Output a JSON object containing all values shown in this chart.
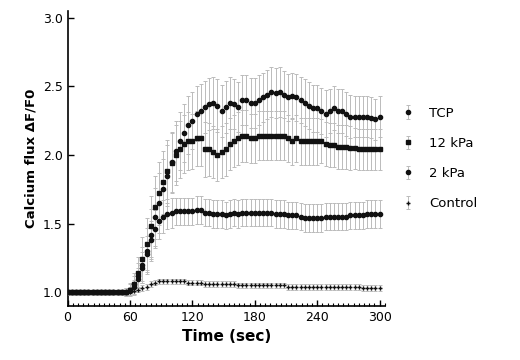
{
  "title": "",
  "xlabel": "Time (sec)",
  "ylabel": "Calcium flux ΔF/F0",
  "xlim": [
    0,
    305
  ],
  "ylim": [
    0.9,
    3.05
  ],
  "yticks": [
    1.0,
    1.5,
    2.0,
    2.5,
    3.0
  ],
  "xticks": [
    0,
    60,
    120,
    180,
    240,
    300
  ],
  "background_color": "#ffffff",
  "series": {
    "TCP": {
      "color": "#111111",
      "marker": "o",
      "markersize": 3.0,
      "linewidth": 1.0,
      "x": [
        0,
        4,
        8,
        12,
        16,
        20,
        24,
        28,
        32,
        36,
        40,
        44,
        48,
        52,
        56,
        60,
        64,
        68,
        72,
        76,
        80,
        84,
        88,
        92,
        96,
        100,
        104,
        108,
        112,
        116,
        120,
        124,
        128,
        132,
        136,
        140,
        144,
        148,
        152,
        156,
        160,
        164,
        168,
        172,
        176,
        180,
        184,
        188,
        192,
        196,
        200,
        204,
        208,
        212,
        216,
        220,
        224,
        228,
        232,
        236,
        240,
        244,
        248,
        252,
        256,
        260,
        264,
        268,
        272,
        276,
        280,
        284,
        288,
        292,
        296,
        300
      ],
      "y": [
        1.0,
        1.0,
        1.0,
        1.0,
        1.0,
        1.0,
        1.0,
        1.0,
        1.0,
        1.0,
        1.0,
        1.0,
        1.0,
        1.0,
        1.0,
        1.02,
        1.06,
        1.12,
        1.2,
        1.3,
        1.42,
        1.55,
        1.65,
        1.75,
        1.85,
        1.95,
        2.03,
        2.1,
        2.16,
        2.22,
        2.25,
        2.3,
        2.32,
        2.35,
        2.37,
        2.38,
        2.36,
        2.32,
        2.35,
        2.38,
        2.37,
        2.35,
        2.4,
        2.4,
        2.38,
        2.38,
        2.4,
        2.42,
        2.44,
        2.46,
        2.45,
        2.46,
        2.44,
        2.42,
        2.43,
        2.42,
        2.4,
        2.38,
        2.36,
        2.34,
        2.34,
        2.32,
        2.3,
        2.32,
        2.34,
        2.32,
        2.32,
        2.3,
        2.28,
        2.28,
        2.28,
        2.28,
        2.28,
        2.27,
        2.26,
        2.28
      ],
      "yerr": [
        0.02,
        0.02,
        0.02,
        0.02,
        0.02,
        0.02,
        0.02,
        0.02,
        0.02,
        0.02,
        0.02,
        0.02,
        0.02,
        0.02,
        0.03,
        0.04,
        0.06,
        0.09,
        0.13,
        0.17,
        0.19,
        0.21,
        0.22,
        0.22,
        0.22,
        0.22,
        0.22,
        0.21,
        0.21,
        0.21,
        0.21,
        0.2,
        0.2,
        0.19,
        0.19,
        0.19,
        0.19,
        0.19,
        0.19,
        0.19,
        0.18,
        0.18,
        0.18,
        0.18,
        0.18,
        0.18,
        0.18,
        0.18,
        0.18,
        0.18,
        0.18,
        0.18,
        0.17,
        0.17,
        0.17,
        0.17,
        0.17,
        0.17,
        0.17,
        0.17,
        0.17,
        0.17,
        0.17,
        0.16,
        0.16,
        0.16,
        0.16,
        0.16,
        0.16,
        0.15,
        0.15,
        0.15,
        0.15,
        0.15,
        0.15,
        0.15
      ],
      "label": "TCP"
    },
    "12kPa": {
      "color": "#111111",
      "marker": "s",
      "markersize": 3.5,
      "linewidth": 1.0,
      "x": [
        0,
        4,
        8,
        12,
        16,
        20,
        24,
        28,
        32,
        36,
        40,
        44,
        48,
        52,
        56,
        60,
        64,
        68,
        72,
        76,
        80,
        84,
        88,
        92,
        96,
        100,
        104,
        108,
        112,
        116,
        120,
        124,
        128,
        132,
        136,
        140,
        144,
        148,
        152,
        156,
        160,
        164,
        168,
        172,
        176,
        180,
        184,
        188,
        192,
        196,
        200,
        204,
        208,
        212,
        216,
        220,
        224,
        228,
        232,
        236,
        240,
        244,
        248,
        252,
        256,
        260,
        264,
        268,
        272,
        276,
        280,
        284,
        288,
        292,
        296,
        300
      ],
      "y": [
        1.0,
        1.0,
        1.0,
        1.0,
        1.0,
        1.0,
        1.0,
        1.0,
        1.0,
        1.0,
        1.0,
        1.0,
        1.0,
        1.0,
        1.0,
        1.02,
        1.06,
        1.14,
        1.24,
        1.35,
        1.48,
        1.62,
        1.72,
        1.8,
        1.88,
        1.94,
        2.0,
        2.04,
        2.08,
        2.1,
        2.1,
        2.12,
        2.12,
        2.04,
        2.04,
        2.02,
        2.0,
        2.02,
        2.04,
        2.08,
        2.1,
        2.12,
        2.14,
        2.14,
        2.12,
        2.12,
        2.14,
        2.14,
        2.14,
        2.14,
        2.14,
        2.14,
        2.14,
        2.12,
        2.1,
        2.12,
        2.1,
        2.1,
        2.1,
        2.1,
        2.1,
        2.1,
        2.08,
        2.07,
        2.07,
        2.06,
        2.06,
        2.06,
        2.05,
        2.05,
        2.04,
        2.04,
        2.04,
        2.04,
        2.04,
        2.04
      ],
      "yerr": [
        0.02,
        0.02,
        0.02,
        0.02,
        0.02,
        0.02,
        0.02,
        0.02,
        0.02,
        0.02,
        0.02,
        0.02,
        0.02,
        0.02,
        0.03,
        0.05,
        0.08,
        0.12,
        0.16,
        0.19,
        0.22,
        0.23,
        0.23,
        0.23,
        0.23,
        0.22,
        0.22,
        0.21,
        0.21,
        0.21,
        0.2,
        0.2,
        0.2,
        0.2,
        0.19,
        0.19,
        0.19,
        0.19,
        0.19,
        0.19,
        0.19,
        0.19,
        0.19,
        0.19,
        0.18,
        0.18,
        0.18,
        0.18,
        0.18,
        0.18,
        0.18,
        0.18,
        0.18,
        0.17,
        0.17,
        0.17,
        0.17,
        0.17,
        0.17,
        0.17,
        0.17,
        0.16,
        0.16,
        0.16,
        0.16,
        0.16,
        0.16,
        0.16,
        0.16,
        0.15,
        0.15,
        0.15,
        0.15,
        0.15,
        0.15,
        0.15
      ],
      "label": "12 kPa"
    },
    "2kPa": {
      "color": "#111111",
      "marker": "o",
      "markersize": 3.0,
      "linewidth": 1.0,
      "x": [
        0,
        4,
        8,
        12,
        16,
        20,
        24,
        28,
        32,
        36,
        40,
        44,
        48,
        52,
        56,
        60,
        64,
        68,
        72,
        76,
        80,
        84,
        88,
        92,
        96,
        100,
        104,
        108,
        112,
        116,
        120,
        124,
        128,
        132,
        136,
        140,
        144,
        148,
        152,
        156,
        160,
        164,
        168,
        172,
        176,
        180,
        184,
        188,
        192,
        196,
        200,
        204,
        208,
        212,
        216,
        220,
        224,
        228,
        232,
        236,
        240,
        244,
        248,
        252,
        256,
        260,
        264,
        268,
        272,
        276,
        280,
        284,
        288,
        292,
        296,
        300
      ],
      "y": [
        1.0,
        1.0,
        1.0,
        1.0,
        1.0,
        1.0,
        1.0,
        1.0,
        1.0,
        1.0,
        1.0,
        1.0,
        1.0,
        1.0,
        1.0,
        1.01,
        1.04,
        1.1,
        1.18,
        1.28,
        1.38,
        1.46,
        1.52,
        1.55,
        1.57,
        1.58,
        1.59,
        1.59,
        1.59,
        1.59,
        1.59,
        1.6,
        1.6,
        1.58,
        1.58,
        1.57,
        1.57,
        1.57,
        1.56,
        1.57,
        1.58,
        1.57,
        1.58,
        1.58,
        1.58,
        1.58,
        1.58,
        1.58,
        1.58,
        1.58,
        1.57,
        1.57,
        1.57,
        1.56,
        1.56,
        1.56,
        1.55,
        1.54,
        1.54,
        1.54,
        1.54,
        1.54,
        1.55,
        1.55,
        1.55,
        1.55,
        1.55,
        1.55,
        1.56,
        1.56,
        1.56,
        1.56,
        1.57,
        1.57,
        1.57,
        1.57
      ],
      "yerr": [
        0.02,
        0.02,
        0.02,
        0.02,
        0.02,
        0.02,
        0.02,
        0.02,
        0.02,
        0.02,
        0.02,
        0.02,
        0.02,
        0.02,
        0.02,
        0.03,
        0.05,
        0.08,
        0.11,
        0.13,
        0.14,
        0.14,
        0.13,
        0.12,
        0.11,
        0.11,
        0.1,
        0.1,
        0.1,
        0.1,
        0.1,
        0.1,
        0.1,
        0.1,
        0.1,
        0.1,
        0.1,
        0.1,
        0.1,
        0.1,
        0.1,
        0.1,
        0.1,
        0.1,
        0.1,
        0.1,
        0.1,
        0.1,
        0.1,
        0.1,
        0.1,
        0.1,
        0.1,
        0.1,
        0.1,
        0.1,
        0.1,
        0.1,
        0.1,
        0.1,
        0.1,
        0.1,
        0.1,
        0.1,
        0.1,
        0.1,
        0.1,
        0.1,
        0.1,
        0.1,
        0.1,
        0.1,
        0.1,
        0.1,
        0.1,
        0.1
      ],
      "label": "2 kPa"
    },
    "Control": {
      "color": "#111111",
      "marker": "+",
      "markersize": 3.5,
      "linewidth": 0.8,
      "x": [
        0,
        4,
        8,
        12,
        16,
        20,
        24,
        28,
        32,
        36,
        40,
        44,
        48,
        52,
        56,
        60,
        64,
        68,
        72,
        76,
        80,
        84,
        88,
        92,
        96,
        100,
        104,
        108,
        112,
        116,
        120,
        124,
        128,
        132,
        136,
        140,
        144,
        148,
        152,
        156,
        160,
        164,
        168,
        172,
        176,
        180,
        184,
        188,
        192,
        196,
        200,
        204,
        208,
        212,
        216,
        220,
        224,
        228,
        232,
        236,
        240,
        244,
        248,
        252,
        256,
        260,
        264,
        268,
        272,
        276,
        280,
        284,
        288,
        292,
        296,
        300
      ],
      "y": [
        1.0,
        1.0,
        1.0,
        1.0,
        1.0,
        1.0,
        1.0,
        1.0,
        1.0,
        1.0,
        1.0,
        1.0,
        1.0,
        1.0,
        1.0,
        1.0,
        1.01,
        1.02,
        1.03,
        1.04,
        1.06,
        1.07,
        1.08,
        1.08,
        1.08,
        1.08,
        1.08,
        1.08,
        1.08,
        1.07,
        1.07,
        1.07,
        1.07,
        1.06,
        1.06,
        1.06,
        1.06,
        1.06,
        1.06,
        1.06,
        1.06,
        1.05,
        1.05,
        1.05,
        1.05,
        1.05,
        1.05,
        1.05,
        1.05,
        1.05,
        1.05,
        1.05,
        1.05,
        1.04,
        1.04,
        1.04,
        1.04,
        1.04,
        1.04,
        1.04,
        1.04,
        1.04,
        1.04,
        1.04,
        1.04,
        1.04,
        1.04,
        1.04,
        1.04,
        1.04,
        1.04,
        1.03,
        1.03,
        1.03,
        1.03,
        1.03
      ],
      "yerr": [
        0.02,
        0.02,
        0.02,
        0.02,
        0.02,
        0.02,
        0.02,
        0.02,
        0.02,
        0.02,
        0.02,
        0.02,
        0.02,
        0.02,
        0.02,
        0.02,
        0.02,
        0.02,
        0.02,
        0.02,
        0.02,
        0.02,
        0.02,
        0.02,
        0.02,
        0.02,
        0.02,
        0.02,
        0.02,
        0.02,
        0.02,
        0.02,
        0.02,
        0.02,
        0.02,
        0.02,
        0.02,
        0.02,
        0.02,
        0.02,
        0.02,
        0.02,
        0.02,
        0.02,
        0.02,
        0.02,
        0.02,
        0.02,
        0.02,
        0.02,
        0.02,
        0.02,
        0.02,
        0.02,
        0.02,
        0.02,
        0.02,
        0.02,
        0.02,
        0.02,
        0.02,
        0.02,
        0.02,
        0.02,
        0.02,
        0.02,
        0.02,
        0.02,
        0.02,
        0.02,
        0.02,
        0.02,
        0.02,
        0.02,
        0.02,
        0.02
      ],
      "label": "Control"
    }
  },
  "legend_order": [
    "TCP",
    "12kPa",
    "2kPa",
    "Control"
  ],
  "errbar_color": "#bbbbbb",
  "errbar_capsize": 1.5,
  "errbar_linewidth": 0.7
}
